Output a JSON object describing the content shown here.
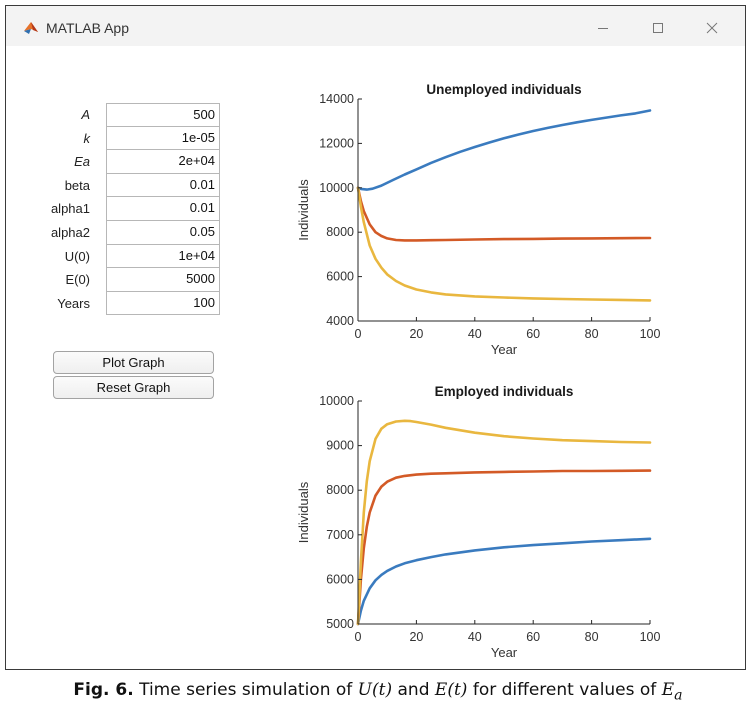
{
  "window": {
    "title": "MATLAB App",
    "icon": "matlab-logo-icon"
  },
  "params": [
    {
      "label": "A",
      "value": "500",
      "italic": true
    },
    {
      "label": "k",
      "value": "1e-05",
      "italic": true
    },
    {
      "label": "Ea",
      "value": "2e+04",
      "italic": true
    },
    {
      "label": "beta",
      "value": "0.01",
      "italic": false
    },
    {
      "label": "alpha1",
      "value": "0.01",
      "italic": false
    },
    {
      "label": "alpha2",
      "value": "0.05",
      "italic": false
    },
    {
      "label": "U(0)",
      "value": "1e+04",
      "italic": false
    },
    {
      "label": "E(0)",
      "value": "5000",
      "italic": false
    },
    {
      "label": "Years",
      "value": "100",
      "italic": false
    }
  ],
  "buttons": {
    "plot": "Plot Graph",
    "reset": "Reset Graph"
  },
  "caption": {
    "fig": "Fig. 6.",
    "pre": "Time series simulation of",
    "u": "U(t)",
    "and": "and",
    "e": "E(t)",
    "mid": "for different values of",
    "ea": "E",
    "ea_sub": "a"
  },
  "colors": {
    "blue": "#3a7bbf",
    "orange": "#d35a26",
    "yellow": "#e9b73f",
    "axis": "#262626"
  },
  "chart_data": [
    {
      "type": "line",
      "title": "Unemployed individuals",
      "xlabel": "Year",
      "ylabel": "Individuals",
      "xlim": [
        0,
        100
      ],
      "ylim": [
        4000,
        14000
      ],
      "xticks": [
        0,
        20,
        40,
        60,
        80,
        100
      ],
      "yticks": [
        4000,
        6000,
        8000,
        10000,
        12000,
        14000
      ],
      "series": [
        {
          "name": "blue",
          "x": [
            0,
            1,
            3,
            5,
            8,
            12,
            16,
            20,
            25,
            30,
            35,
            40,
            45,
            50,
            55,
            60,
            65,
            70,
            75,
            80,
            85,
            90,
            95,
            100
          ],
          "y": [
            10000,
            9950,
            9920,
            9960,
            10100,
            10350,
            10600,
            10830,
            11120,
            11380,
            11620,
            11840,
            12040,
            12230,
            12400,
            12560,
            12700,
            12830,
            12950,
            13060,
            13160,
            13260,
            13350,
            13480
          ]
        },
        {
          "name": "orange",
          "x": [
            0,
            1,
            2,
            4,
            6,
            8,
            10,
            13,
            16,
            20,
            25,
            30,
            40,
            50,
            60,
            70,
            80,
            90,
            100
          ],
          "y": [
            10000,
            9400,
            8950,
            8350,
            8000,
            7830,
            7720,
            7650,
            7630,
            7630,
            7640,
            7650,
            7670,
            7690,
            7700,
            7710,
            7720,
            7730,
            7740
          ]
        },
        {
          "name": "yellow",
          "x": [
            0,
            1,
            2,
            4,
            6,
            8,
            10,
            13,
            16,
            20,
            25,
            30,
            40,
            50,
            60,
            70,
            80,
            90,
            100
          ],
          "y": [
            10000,
            9150,
            8450,
            7400,
            6800,
            6400,
            6100,
            5800,
            5600,
            5420,
            5290,
            5200,
            5110,
            5060,
            5020,
            4990,
            4970,
            4950,
            4930
          ]
        }
      ]
    },
    {
      "type": "line",
      "title": "Employed individuals",
      "xlabel": "Year",
      "ylabel": "Individuals",
      "xlim": [
        0,
        100
      ],
      "ylim": [
        5000,
        10000
      ],
      "xticks": [
        0,
        20,
        40,
        60,
        80,
        100
      ],
      "yticks": [
        5000,
        6000,
        7000,
        8000,
        9000,
        10000
      ],
      "series": [
        {
          "name": "blue",
          "x": [
            0,
            1,
            2,
            4,
            6,
            8,
            10,
            13,
            16,
            20,
            25,
            30,
            40,
            50,
            60,
            70,
            80,
            90,
            100
          ],
          "y": [
            5000,
            5300,
            5520,
            5800,
            5980,
            6100,
            6190,
            6290,
            6360,
            6430,
            6500,
            6560,
            6650,
            6720,
            6770,
            6810,
            6850,
            6880,
            6910
          ]
        },
        {
          "name": "orange",
          "x": [
            0,
            1,
            2,
            3,
            4,
            6,
            8,
            10,
            13,
            16,
            20,
            25,
            30,
            40,
            50,
            60,
            70,
            80,
            90,
            100
          ],
          "y": [
            5000,
            6000,
            6700,
            7180,
            7500,
            7880,
            8080,
            8190,
            8280,
            8320,
            8350,
            8370,
            8380,
            8400,
            8410,
            8420,
            8430,
            8430,
            8435,
            8440
          ]
        },
        {
          "name": "yellow",
          "x": [
            0,
            1,
            2,
            3,
            4,
            6,
            8,
            10,
            13,
            16,
            18,
            20,
            25,
            30,
            40,
            50,
            60,
            70,
            80,
            90,
            100
          ],
          "y": [
            5000,
            6400,
            7500,
            8200,
            8650,
            9150,
            9380,
            9480,
            9540,
            9555,
            9550,
            9530,
            9470,
            9400,
            9290,
            9210,
            9160,
            9120,
            9100,
            9080,
            9070
          ]
        }
      ]
    }
  ]
}
